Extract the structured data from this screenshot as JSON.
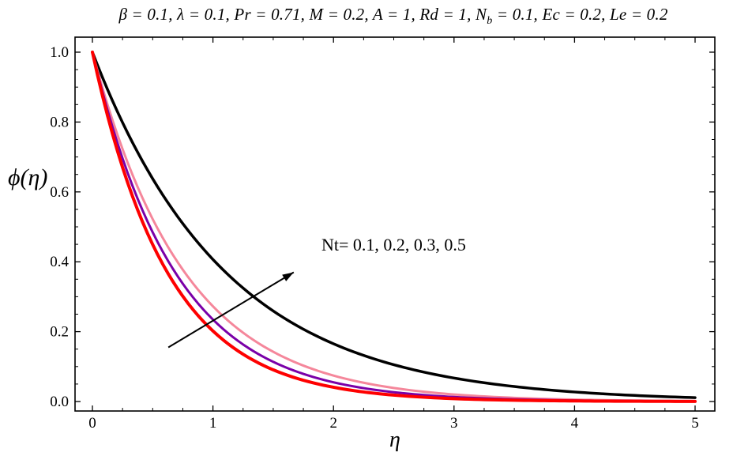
{
  "header": {
    "title_prefix": "β = 0.1, λ = 0.1, Pr = 0.71, M = 0.2, A = 1, Rd = 1, N",
    "title_sub": "b",
    "title_suffix": " = 0.1, Ec = 0.2, Le = 0.2"
  },
  "chart_data": {
    "type": "line",
    "title": "β = 0.1, λ = 0.1, Pr = 0.71, M = 0.2, A = 1, Rd = 1, N_b = 0.1, Ec = 0.2, Le = 0.2",
    "xlabel": "η",
    "ylabel": "ϕ(η)",
    "xlim": [
      0,
      5
    ],
    "ylim": [
      0,
      1
    ],
    "xticks": [
      "0",
      "1",
      "2",
      "3",
      "4",
      "5"
    ],
    "yticks": [
      "0.0",
      "0.2",
      "0.4",
      "0.6",
      "0.8",
      "1.0"
    ],
    "grid": false,
    "legend": "none",
    "frame": true,
    "annotation": {
      "text": "Nt= 0.1, 0.2, 0.3, 0.5",
      "x": 1.9,
      "y": 0.45
    },
    "arrow": {
      "from_x": 0.63,
      "from_y": 0.155,
      "to_x": 1.67,
      "to_y": 0.37,
      "color": "#000000"
    },
    "x": [
      0,
      0.25,
      0.5,
      0.75,
      1,
      1.25,
      1.5,
      1.75,
      2,
      2.25,
      2.5,
      2.75,
      3,
      3.25,
      3.5,
      3.75,
      4,
      4.25,
      4.5,
      4.75,
      5
    ],
    "series": [
      {
        "name": "Nt = 0.1",
        "color": "#fe0000",
        "stroke_width": 4,
        "values": [
          1,
          0.6703,
          0.4493,
          0.3012,
          0.2019,
          0.1353,
          0.0907,
          0.0608,
          0.0408,
          0.0273,
          0.0183,
          0.0123,
          0.0082,
          0.0055,
          0.0037,
          0.0025,
          0.0017,
          0.0011,
          0.0008,
          0.0005,
          0.0003
        ]
      },
      {
        "name": "Nt = 0.2",
        "color": "#7a00a8",
        "stroke_width": 3,
        "values": [
          1,
          0.6959,
          0.4843,
          0.3371,
          0.2346,
          0.1633,
          0.1136,
          0.0791,
          0.055,
          0.0383,
          0.0267,
          0.0186,
          0.0129,
          0.009,
          0.0063,
          0.0044,
          0.003,
          0.0021,
          0.0015,
          0.001,
          0.0007
        ]
      },
      {
        "name": "Nt = 0.3",
        "color": "#f5879b",
        "stroke_width": 3,
        "values": [
          1,
          0.7225,
          0.5221,
          0.3772,
          0.2725,
          0.1969,
          0.1423,
          0.1028,
          0.0743,
          0.0537,
          0.0388,
          0.028,
          0.0202,
          0.0146,
          0.0106,
          0.0076,
          0.0055,
          0.004,
          0.0029,
          0.0021,
          0.0015
        ]
      },
      {
        "name": "Nt = 0.5",
        "color": "#000000",
        "stroke_width": 3.5,
        "values": [
          1,
          0.7985,
          0.6376,
          0.5092,
          0.4066,
          0.3247,
          0.2592,
          0.207,
          0.1653,
          0.132,
          0.1054,
          0.0842,
          0.0672,
          0.0537,
          0.0429,
          0.0342,
          0.0273,
          0.0218,
          0.0174,
          0.0139,
          0.0111
        ]
      }
    ]
  }
}
